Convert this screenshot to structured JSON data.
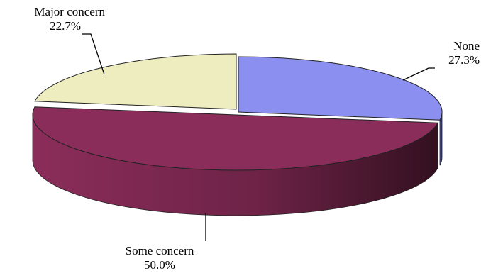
{
  "chart_data": {
    "type": "pie",
    "style": "3d",
    "slices": [
      {
        "label": "None",
        "value_label": "27.3%",
        "value": 27.3,
        "color": "#8b8ff0"
      },
      {
        "label": "Some concern",
        "value_label": "50.0%",
        "value": 50.0,
        "color": "#8b2d5a"
      },
      {
        "label": "Major concern",
        "value_label": "22.7%",
        "value": 22.7,
        "color": "#ededc0"
      }
    ],
    "legend": "none"
  }
}
